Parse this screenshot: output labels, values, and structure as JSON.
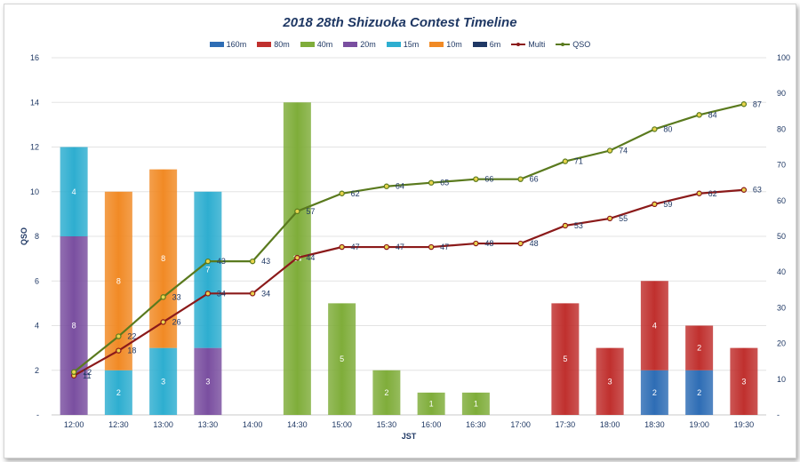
{
  "chart_data": {
    "type": "bar",
    "title": "2018 28th Shizuoka  Contest  Timeline",
    "xlabel": "JST",
    "ylabel": "QSO",
    "ylim": [
      0,
      16
    ],
    "y2lim": [
      0,
      100
    ],
    "yticks": [
      "-",
      "2",
      "4",
      "6",
      "8",
      "10",
      "12",
      "14",
      "16"
    ],
    "y2ticks": [
      "-",
      "10",
      "20",
      "30",
      "40",
      "50",
      "60",
      "70",
      "80",
      "90",
      "100"
    ],
    "categories": [
      "12:00",
      "12:30",
      "13:00",
      "13:30",
      "14:00",
      "14:30",
      "15:00",
      "15:30",
      "16:00",
      "16:30",
      "17:00",
      "17:30",
      "18:00",
      "18:30",
      "19:00",
      "19:30"
    ],
    "series": [
      {
        "name": "160m",
        "color": "#2e6db5",
        "values": [
          0,
          0,
          0,
          0,
          0,
          0,
          0,
          0,
          0,
          0,
          0,
          0,
          0,
          2,
          2,
          0
        ]
      },
      {
        "name": "80m",
        "color": "#c0302e",
        "values": [
          0,
          0,
          0,
          0,
          0,
          0,
          0,
          0,
          0,
          0,
          0,
          5,
          3,
          4,
          2,
          3
        ]
      },
      {
        "name": "40m",
        "color": "#7fad3a",
        "values": [
          0,
          0,
          0,
          0,
          0,
          14,
          5,
          2,
          1,
          1,
          0,
          0,
          0,
          0,
          0,
          0
        ]
      },
      {
        "name": "20m",
        "color": "#7a4fa0",
        "values": [
          8,
          0,
          0,
          3,
          0,
          0,
          0,
          0,
          0,
          0,
          0,
          0,
          0,
          0,
          0,
          0
        ]
      },
      {
        "name": "15m",
        "color": "#2eaed0",
        "values": [
          4,
          2,
          3,
          7,
          0,
          0,
          0,
          0,
          0,
          0,
          0,
          0,
          0,
          0,
          0,
          0
        ]
      },
      {
        "name": "10m",
        "color": "#f18a25",
        "values": [
          0,
          8,
          8,
          0,
          0,
          0,
          0,
          0,
          0,
          0,
          0,
          0,
          0,
          0,
          0,
          0
        ]
      },
      {
        "name": "6m",
        "color": "#1f3864",
        "values": [
          0,
          0,
          0,
          0,
          0,
          0,
          0,
          0,
          0,
          0,
          0,
          0,
          0,
          0,
          0,
          0
        ]
      }
    ],
    "lines": [
      {
        "name": "Multi",
        "color": "#8b1a1a",
        "values": [
          11,
          18,
          26,
          34,
          34,
          44,
          47,
          47,
          47,
          48,
          48,
          53,
          55,
          59,
          62,
          63
        ]
      },
      {
        "name": "QSO",
        "color": "#5a7a1e",
        "values": [
          12,
          22,
          33,
          43,
          43,
          57,
          62,
          64,
          65,
          66,
          66,
          71,
          74,
          80,
          84,
          87
        ]
      }
    ]
  }
}
